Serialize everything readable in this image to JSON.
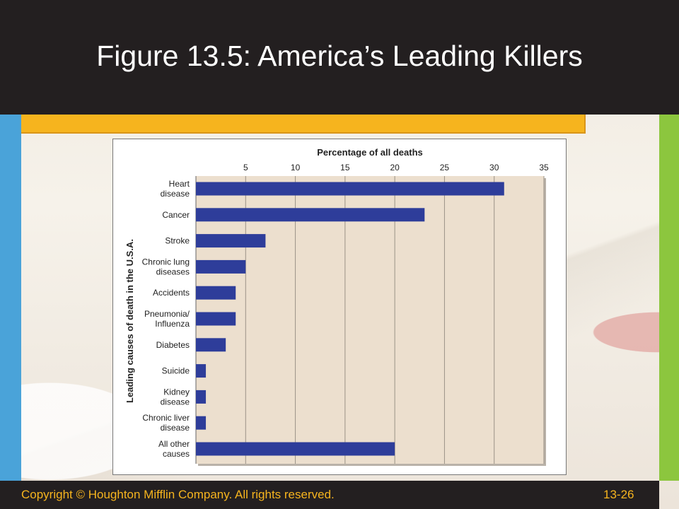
{
  "slide": {
    "title": "Figure 13.5: America’s Leading Killers",
    "copyright": "Copyright © Houghton Mifflin Company. All rights reserved.",
    "page_number": "13-26"
  },
  "colors": {
    "header": "#231f20",
    "accent_yellow": "#f6b41e",
    "left_strip": "#4aa3d9",
    "right_strip": "#8cc63e",
    "bar": "#2e3d9a",
    "plot_bg": "#ecdfce"
  },
  "chart_data": {
    "type": "bar",
    "orientation": "horizontal",
    "xlabel": "Percentage of all deaths",
    "ylabel": "Leading causes of death in the U.S.A.",
    "xlim": [
      0,
      35
    ],
    "xticks": [
      5,
      10,
      15,
      20,
      25,
      30,
      35
    ],
    "grid": true,
    "categories": [
      [
        "Heart",
        "disease"
      ],
      [
        "Cancer"
      ],
      [
        "Stroke"
      ],
      [
        "Chronic lung",
        "diseases"
      ],
      [
        "Accidents"
      ],
      [
        "Pneumonia/",
        "Influenza"
      ],
      [
        "Diabetes"
      ],
      [
        "Suicide"
      ],
      [
        "Kidney",
        "disease"
      ],
      [
        "Chronic liver",
        "disease"
      ],
      [
        "All other",
        "causes"
      ]
    ],
    "values": [
      31,
      23,
      7,
      5,
      4,
      4,
      3,
      1,
      1,
      1,
      20
    ]
  }
}
